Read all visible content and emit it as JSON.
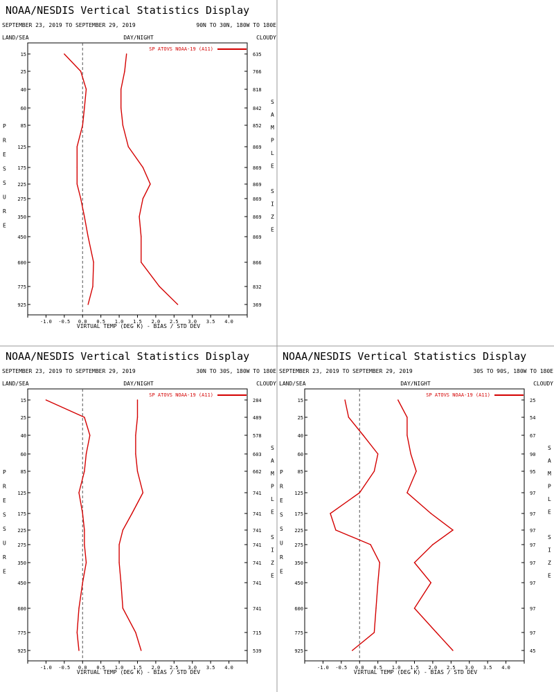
{
  "panels": [
    {
      "title": "NOAA/NESDIS Vertical Statistics Display",
      "date_range": "SEPTEMBER 23, 2019 TO SEPTEMBER 29, 2019",
      "region": "90N TO 30N, 180W TO 180E",
      "header_left": "LAND/SEA",
      "header_center": "DAY/NIGHT",
      "header_right": "CLOUDY",
      "left_axis_label": "PRESSURE",
      "right_axis_label": "SAMPLE SIZE",
      "legend": "SP ATOVS NOAA-19 (A11)",
      "xlabel": "VIRTUAL TEMP (DEG K) - BIAS / STD DEV",
      "chart_data": {
        "type": "line",
        "x_ticks": [
          "-1.0",
          "-0.5",
          "0.0",
          "0.5",
          "1.0",
          "1.5",
          "2.0",
          "2.5",
          "3.0",
          "3.5",
          "4.0"
        ],
        "xlim": [
          -1.5,
          4.5
        ],
        "pressure_levels": [
          "15",
          "25",
          "40",
          "60",
          "85",
          "125",
          "175",
          "225",
          "275",
          "350",
          "450",
          "600",
          "775",
          "925"
        ],
        "sample_sizes": [
          "635",
          "766",
          "818",
          "842",
          "852",
          "869",
          "869",
          "869",
          "869",
          "869",
          "869",
          "866",
          "832",
          "369"
        ],
        "series": [
          {
            "name": "SP ATOVS NOAA-19 (A11)",
            "role": "bias",
            "values": [
              -0.5,
              -0.05,
              0.1,
              0.05,
              0.0,
              -0.15,
              -0.15,
              -0.15,
              -0.05,
              0.05,
              0.15,
              0.3,
              0.28,
              0.15
            ]
          },
          {
            "role": "std_dev",
            "values": [
              1.2,
              1.15,
              1.05,
              1.05,
              1.1,
              1.25,
              1.65,
              1.85,
              1.65,
              1.55,
              1.6,
              1.6,
              2.1,
              2.6
            ]
          }
        ]
      }
    },
    {
      "title": "NOAA/NESDIS Vertical Statistics Display",
      "date_range": "SEPTEMBER 23, 2019 TO SEPTEMBER 29, 2019",
      "region": "30N TO 30S, 180W TO 180E",
      "header_left": "LAND/SEA",
      "header_center": "DAY/NIGHT",
      "header_right": "CLOUDY",
      "left_axis_label": "PRESSURE",
      "right_axis_label": "SAMPLE SIZE",
      "legend": "SP ATOVS NOAA-19 (A11)",
      "xlabel": "VIRTUAL TEMP (DEG K) - BIAS / STD DEV",
      "chart_data": {
        "type": "line",
        "x_ticks": [
          "-1.0",
          "-0.5",
          "0.0",
          "0.5",
          "1.0",
          "1.5",
          "2.0",
          "2.5",
          "3.0",
          "3.5",
          "4.0"
        ],
        "xlim": [
          -1.5,
          4.5
        ],
        "pressure_levels": [
          "15",
          "25",
          "40",
          "60",
          "85",
          "125",
          "175",
          "225",
          "275",
          "350",
          "450",
          "600",
          "775",
          "925"
        ],
        "sample_sizes": [
          "284",
          "489",
          "578",
          "603",
          "662",
          "741",
          "741",
          "741",
          "741",
          "741",
          "741",
          "741",
          "715",
          "539"
        ],
        "series": [
          {
            "name": "SP ATOVS NOAA-19 (A11)",
            "role": "bias",
            "values": [
              -1.0,
              0.05,
              0.2,
              0.1,
              0.05,
              -0.1,
              0.0,
              0.05,
              0.05,
              0.1,
              0.0,
              -0.1,
              -0.15,
              -0.1
            ]
          },
          {
            "role": "std_dev",
            "values": [
              1.5,
              1.5,
              1.45,
              1.45,
              1.5,
              1.65,
              1.35,
              1.1,
              1.0,
              1.0,
              1.05,
              1.1,
              1.45,
              1.6
            ]
          }
        ]
      }
    },
    {
      "title": "NOAA/NESDIS Vertical Statistics Display",
      "date_range": "SEPTEMBER 23, 2019 TO SEPTEMBER 29, 2019",
      "region": "30S TO 90S, 180W TO 180E",
      "header_left": "LAND/SEA",
      "header_center": "DAY/NIGHT",
      "header_right": "CLOUDY",
      "left_axis_label": "PRESSURE",
      "right_axis_label": "SAMPLE SIZE",
      "legend": "SP ATOVS NOAA-19 (A11)",
      "xlabel": "VIRTUAL TEMP (DEG K) - BIAS / STD DEV",
      "chart_data": {
        "type": "line",
        "x_ticks": [
          "-1.0",
          "-0.5",
          "0.0",
          "0.5",
          "1.0",
          "1.5",
          "2.0",
          "2.5",
          "3.0",
          "3.5",
          "4.0"
        ],
        "xlim": [
          -1.5,
          4.5
        ],
        "pressure_levels": [
          "15",
          "25",
          "40",
          "60",
          "85",
          "125",
          "175",
          "225",
          "275",
          "350",
          "450",
          "600",
          "775",
          "925"
        ],
        "sample_sizes": [
          "25",
          "54",
          "67",
          "90",
          "95",
          "97",
          "97",
          "97",
          "97",
          "97",
          "97",
          "97",
          "97",
          "45"
        ],
        "series": [
          {
            "name": "SP ATOVS NOAA-19 (A11)",
            "role": "bias",
            "values": [
              -0.4,
              -0.3,
              0.1,
              0.5,
              0.4,
              0.0,
              -0.8,
              -0.65,
              0.3,
              0.55,
              0.5,
              0.45,
              0.4,
              -0.2
            ]
          },
          {
            "role": "std_dev",
            "values": [
              1.05,
              1.3,
              1.3,
              1.4,
              1.55,
              1.3,
              1.95,
              2.55,
              2.0,
              1.5,
              1.95,
              1.5,
              2.1,
              2.55
            ]
          }
        ]
      }
    }
  ],
  "style": {
    "series_color": "#d40000",
    "axis_color": "#000000",
    "zero_line_color": "#555555",
    "divider_color": "#9a9a9a"
  }
}
